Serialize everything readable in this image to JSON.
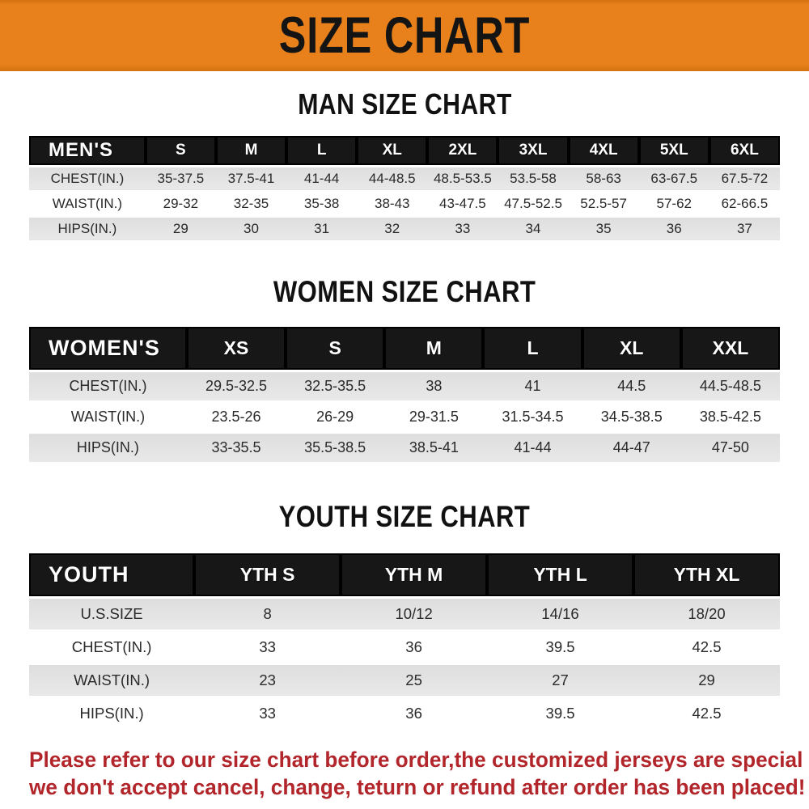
{
  "banner": {
    "title": "SIZE CHART"
  },
  "colors": {
    "banner_bg": "#E8811C",
    "header_bar": "#171717",
    "row_shade": "#E4E4E4",
    "footer_text": "#B2262B"
  },
  "sections": [
    {
      "id": "men",
      "title": "MAN SIZE CHART",
      "table": {
        "header_label": "MEN'S",
        "columns": [
          "S",
          "M",
          "L",
          "XL",
          "2XL",
          "3XL",
          "4XL",
          "5XL",
          "6XL"
        ],
        "rows": [
          {
            "label": "CHEST(IN.)",
            "values": [
              "35-37.5",
              "37.5-41",
              "41-44",
              "44-48.5",
              "48.5-53.5",
              "53.5-58",
              "58-63",
              "63-67.5",
              "67.5-72"
            ]
          },
          {
            "label": "WAIST(IN.)",
            "values": [
              "29-32",
              "32-35",
              "35-38",
              "38-43",
              "43-47.5",
              "47.5-52.5",
              "52.5-57",
              "57-62",
              "62-66.5"
            ]
          },
          {
            "label": "HIPS(IN.)",
            "values": [
              "29",
              "30",
              "31",
              "32",
              "33",
              "34",
              "35",
              "36",
              "37"
            ]
          }
        ]
      }
    },
    {
      "id": "women",
      "title": "WOMEN SIZE CHART",
      "table": {
        "header_label": "WOMEN'S",
        "columns": [
          "XS",
          "S",
          "M",
          "L",
          "XL",
          "XXL"
        ],
        "rows": [
          {
            "label": "CHEST(IN.)",
            "values": [
              "29.5-32.5",
              "32.5-35.5",
              "38",
              "41",
              "44.5",
              "44.5-48.5"
            ]
          },
          {
            "label": "WAIST(IN.)",
            "values": [
              "23.5-26",
              "26-29",
              "29-31.5",
              "31.5-34.5",
              "34.5-38.5",
              "38.5-42.5"
            ]
          },
          {
            "label": "HIPS(IN.)",
            "values": [
              "33-35.5",
              "35.5-38.5",
              "38.5-41",
              "41-44",
              "44-47",
              "47-50"
            ]
          }
        ]
      }
    },
    {
      "id": "youth",
      "title": "YOUTH SIZE CHART",
      "table": {
        "header_label": "YOUTH",
        "columns": [
          "YTH S",
          "YTH M",
          "YTH L",
          "YTH XL"
        ],
        "rows": [
          {
            "label": "U.S.SIZE",
            "values": [
              "8",
              "10/12",
              "14/16",
              "18/20"
            ]
          },
          {
            "label": "CHEST(IN.)",
            "values": [
              "33",
              "36",
              "39.5",
              "42.5"
            ]
          },
          {
            "label": "WAIST(IN.)",
            "values": [
              "23",
              "25",
              "27",
              "29"
            ]
          },
          {
            "label": "HIPS(IN.)",
            "values": [
              "33",
              "36",
              "39.5",
              "42.5"
            ]
          }
        ]
      }
    }
  ],
  "footer": {
    "line1": "Please refer to our size chart before order,the customized jerseys are special products,",
    "line2": "we don't accept cancel, change, teturn or refund after order has been placed!"
  }
}
